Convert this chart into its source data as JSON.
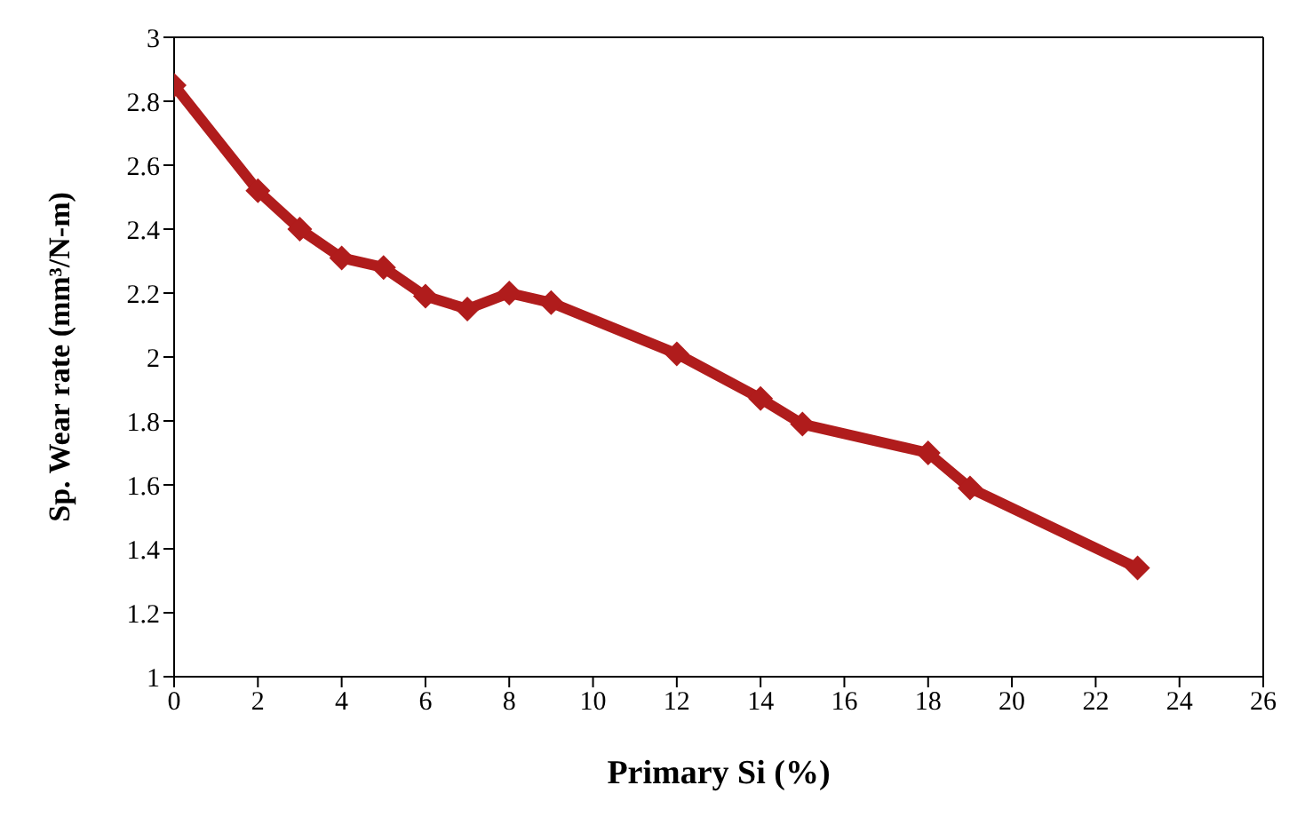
{
  "chart_data": {
    "type": "line",
    "xlabel": "Primary Si (%)",
    "ylabel": "Sp. Wear rate (mm³/N-m)",
    "x": [
      0,
      2,
      3,
      4,
      5,
      6,
      7,
      8,
      9,
      12,
      14,
      15,
      18,
      19,
      23
    ],
    "series": [
      {
        "color": "#b01c1c",
        "values": [
          2.85,
          2.52,
          2.4,
          2.31,
          2.28,
          2.19,
          2.15,
          2.2,
          2.17,
          2.01,
          1.87,
          1.79,
          1.7,
          1.59,
          1.34
        ]
      }
    ],
    "xlim": [
      0,
      26
    ],
    "xticks": [
      0,
      2,
      4,
      6,
      8,
      10,
      12,
      14,
      16,
      18,
      20,
      22,
      24,
      26
    ],
    "ylim": [
      1,
      3
    ],
    "yticks": [
      1,
      1.2,
      1.4,
      1.6,
      1.8,
      2,
      2.2,
      2.4,
      2.6,
      2.8,
      3
    ],
    "marker": "diamond",
    "grid": false,
    "legend": false
  }
}
